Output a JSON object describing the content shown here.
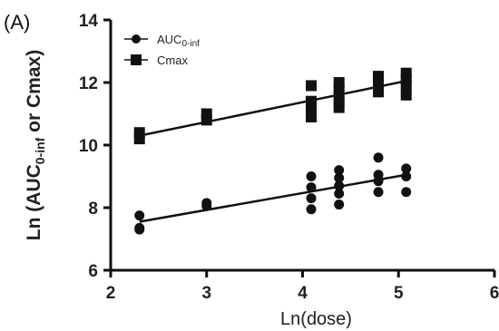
{
  "panel_label": "(A)",
  "chart_data": {
    "type": "scatter",
    "xlabel": "Ln(dose)",
    "ylabel_main": "Ln (AUC",
    "ylabel_sub": "0-inf",
    "ylabel_tail": " or Cmax)",
    "xlim": [
      2,
      6
    ],
    "ylim": [
      6,
      14
    ],
    "x_ticks": [
      "2",
      "3",
      "4",
      "5",
      "6"
    ],
    "y_ticks": [
      "6",
      "8",
      "10",
      "12",
      "14"
    ],
    "x_tick_values": [
      2,
      3,
      4,
      5,
      6
    ],
    "y_tick_values": [
      6,
      8,
      10,
      12,
      14
    ],
    "grid": false,
    "legend_position": "top-left",
    "series": [
      {
        "name": "AUC",
        "name_sub": "0-inf",
        "marker": "circle",
        "color": "#111111",
        "points": [
          [
            2.3,
            7.3
          ],
          [
            2.3,
            7.35
          ],
          [
            2.3,
            7.75
          ],
          [
            3.0,
            8.05
          ],
          [
            3.0,
            8.15
          ],
          [
            4.09,
            7.95
          ],
          [
            4.09,
            8.3
          ],
          [
            4.09,
            8.65
          ],
          [
            4.09,
            9.0
          ],
          [
            4.38,
            8.1
          ],
          [
            4.38,
            8.45
          ],
          [
            4.38,
            8.7
          ],
          [
            4.38,
            8.95
          ],
          [
            4.38,
            9.2
          ],
          [
            4.79,
            8.5
          ],
          [
            4.79,
            8.85
          ],
          [
            4.79,
            9.05
          ],
          [
            4.79,
            9.6
          ],
          [
            5.08,
            8.5
          ],
          [
            5.08,
            9.0
          ],
          [
            5.08,
            9.25
          ]
        ],
        "trend": [
          [
            2.3,
            7.55
          ],
          [
            5.08,
            9.05
          ]
        ]
      },
      {
        "name": "Cmax",
        "marker": "square",
        "color": "#111111",
        "points": [
          [
            2.3,
            10.2
          ],
          [
            2.3,
            10.4
          ],
          [
            3.0,
            10.8
          ],
          [
            3.0,
            11.0
          ],
          [
            4.09,
            10.9
          ],
          [
            4.09,
            11.2
          ],
          [
            4.09,
            11.4
          ],
          [
            4.09,
            11.9
          ],
          [
            4.38,
            11.2
          ],
          [
            4.38,
            11.4
          ],
          [
            4.38,
            11.6
          ],
          [
            4.38,
            11.8
          ],
          [
            4.38,
            12.0
          ],
          [
            4.79,
            11.7
          ],
          [
            4.79,
            11.9
          ],
          [
            4.79,
            12.1
          ],
          [
            4.79,
            12.2
          ],
          [
            5.08,
            11.6
          ],
          [
            5.08,
            11.9
          ],
          [
            5.08,
            12.1
          ],
          [
            5.08,
            12.3
          ]
        ],
        "trend": [
          [
            2.3,
            10.3
          ],
          [
            5.08,
            12.05
          ]
        ]
      }
    ]
  }
}
